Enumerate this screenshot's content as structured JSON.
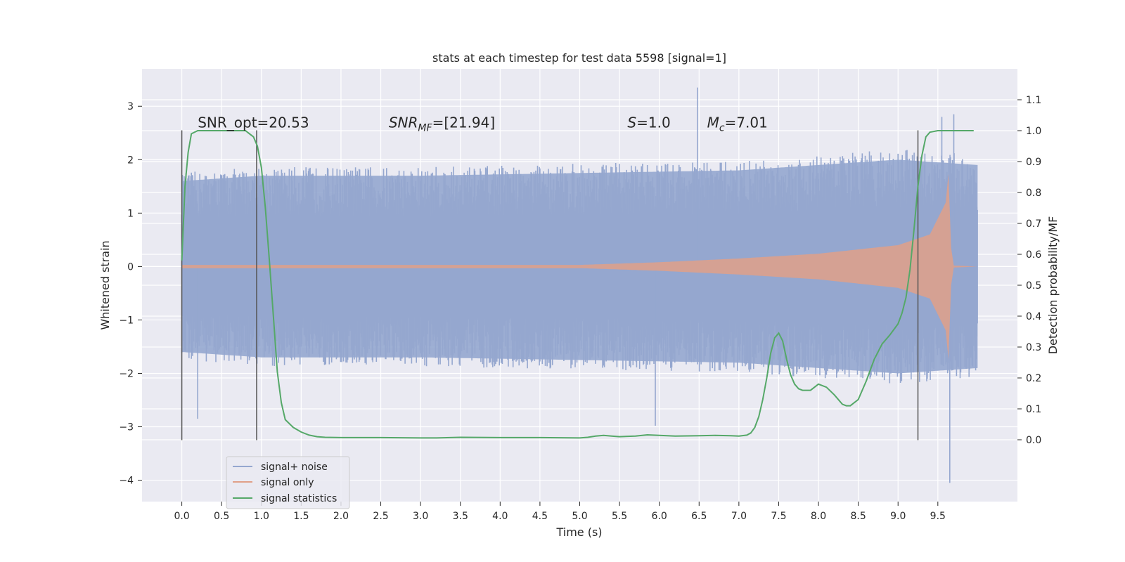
{
  "chart_data": {
    "type": "line",
    "title": "stats at each timestep for test data 5598 [signal=1]",
    "xlabel": "Time (s)",
    "ylabel_left": "Whitened strain",
    "ylabel_right": "Detection probability/MF",
    "xlim": [
      -0.5,
      10.5
    ],
    "ylim_left": [
      -4.4,
      3.7
    ],
    "ylim_right": [
      -0.2,
      1.2
    ],
    "x_ticks": [
      0.0,
      0.5,
      1.0,
      1.5,
      2.0,
      2.5,
      3.0,
      3.5,
      4.0,
      4.5,
      5.0,
      5.5,
      6.0,
      6.5,
      7.0,
      7.5,
      8.0,
      8.5,
      9.0,
      9.5
    ],
    "x_tick_labels": [
      "0.0",
      "0.5",
      "1.0",
      "1.5",
      "2.0",
      "2.5",
      "3.0",
      "3.5",
      "4.0",
      "4.5",
      "5.0",
      "5.5",
      "6.0",
      "6.5",
      "7.0",
      "7.5",
      "8.0",
      "8.5",
      "9.0",
      "9.5"
    ],
    "y_left_ticks": [
      3,
      2,
      1,
      0,
      -1,
      -2,
      -3,
      -4
    ],
    "y_left_tick_labels": [
      "3",
      "2",
      "1",
      "0",
      "−1",
      "−2",
      "−3",
      "−4"
    ],
    "y_right_ticks": [
      1.1,
      1.0,
      0.9,
      0.8,
      0.7,
      0.6,
      0.5,
      0.4,
      0.3,
      0.2,
      0.1,
      0.0
    ],
    "y_right_tick_labels": [
      "1.1",
      "1.0",
      "0.9",
      "0.8",
      "0.7",
      "0.6",
      "0.5",
      "0.4",
      "0.3",
      "0.2",
      "0.1",
      "0.0"
    ],
    "grid": true,
    "legend_position": "lower-left",
    "series": [
      {
        "name": "signal+ noise",
        "axis": "left",
        "color": "#95a7cf",
        "x_range": [
          0.0,
          10.0
        ],
        "envelope_upper": [
          [
            0.0,
            1.6
          ],
          [
            1.0,
            1.7
          ],
          [
            3.0,
            1.7
          ],
          [
            5.0,
            1.75
          ],
          [
            7.0,
            1.8
          ],
          [
            9.0,
            2.0
          ],
          [
            10.0,
            1.9
          ]
        ],
        "envelope_lower": [
          [
            0.0,
            -1.6
          ],
          [
            1.0,
            -1.7
          ],
          [
            3.0,
            -1.7
          ],
          [
            5.0,
            -1.75
          ],
          [
            7.0,
            -1.8
          ],
          [
            9.0,
            -2.0
          ],
          [
            10.0,
            -1.9
          ]
        ],
        "extremes": [
          [
            6.48,
            3.35
          ],
          [
            9.65,
            -4.05
          ],
          [
            0.2,
            -2.85
          ],
          [
            5.95,
            -2.98
          ],
          [
            9.7,
            2.85
          ],
          [
            9.55,
            2.8
          ]
        ]
      },
      {
        "name": "signal only",
        "axis": "left",
        "color": "#e0a088",
        "x_range": [
          0.0,
          10.0
        ],
        "envelope_upper": [
          [
            0.0,
            0.03
          ],
          [
            5.0,
            0.03
          ],
          [
            6.0,
            0.08
          ],
          [
            7.0,
            0.15
          ],
          [
            8.0,
            0.24
          ],
          [
            9.0,
            0.4
          ],
          [
            9.4,
            0.6
          ],
          [
            9.6,
            1.2
          ],
          [
            9.65,
            2.0
          ],
          [
            9.67,
            0.02
          ],
          [
            10.0,
            0.0
          ]
        ],
        "envelope_lower": [
          [
            0.0,
            -0.03
          ],
          [
            5.0,
            -0.03
          ],
          [
            6.0,
            -0.08
          ],
          [
            7.0,
            -0.15
          ],
          [
            8.0,
            -0.24
          ],
          [
            9.0,
            -0.4
          ],
          [
            9.4,
            -0.6
          ],
          [
            9.6,
            -1.2
          ],
          [
            9.65,
            -2.0
          ],
          [
            9.67,
            -0.02
          ],
          [
            10.0,
            0.0
          ]
        ]
      },
      {
        "name": "signal statistics",
        "axis": "right",
        "color": "#55a868",
        "x": [
          0.0,
          0.04,
          0.08,
          0.12,
          0.2,
          0.3,
          0.5,
          0.7,
          0.8,
          0.85,
          0.9,
          0.95,
          1.0,
          1.05,
          1.1,
          1.15,
          1.2,
          1.25,
          1.3,
          1.4,
          1.5,
          1.6,
          1.7,
          1.8,
          2.0,
          2.5,
          3.0,
          3.2,
          3.5,
          4.0,
          4.5,
          5.0,
          5.1,
          5.2,
          5.3,
          5.4,
          5.5,
          5.7,
          5.85,
          6.0,
          6.2,
          6.5,
          6.7,
          6.9,
          7.0,
          7.1,
          7.15,
          7.2,
          7.25,
          7.3,
          7.35,
          7.4,
          7.45,
          7.5,
          7.55,
          7.6,
          7.65,
          7.7,
          7.75,
          7.8,
          7.9,
          8.0,
          8.1,
          8.2,
          8.3,
          8.35,
          8.4,
          8.5,
          8.6,
          8.7,
          8.8,
          8.9,
          9.0,
          9.05,
          9.1,
          9.15,
          9.2,
          9.25,
          9.3,
          9.35,
          9.4,
          9.5,
          9.6,
          9.8,
          9.95
        ],
        "y": [
          0.58,
          0.82,
          0.93,
          0.99,
          1.0,
          1.0,
          1.0,
          1.0,
          1.0,
          0.99,
          0.98,
          0.95,
          0.88,
          0.75,
          0.58,
          0.4,
          0.22,
          0.12,
          0.065,
          0.04,
          0.025,
          0.015,
          0.01,
          0.008,
          0.007,
          0.007,
          0.006,
          0.006,
          0.008,
          0.007,
          0.007,
          0.006,
          0.008,
          0.012,
          0.014,
          0.012,
          0.01,
          0.012,
          0.016,
          0.014,
          0.012,
          0.013,
          0.014,
          0.013,
          0.012,
          0.015,
          0.022,
          0.04,
          0.075,
          0.13,
          0.2,
          0.28,
          0.33,
          0.345,
          0.32,
          0.26,
          0.21,
          0.18,
          0.165,
          0.16,
          0.16,
          0.18,
          0.17,
          0.145,
          0.115,
          0.11,
          0.11,
          0.13,
          0.19,
          0.26,
          0.31,
          0.34,
          0.375,
          0.41,
          0.46,
          0.55,
          0.68,
          0.82,
          0.92,
          0.98,
          0.995,
          1.0,
          1.0,
          1.0,
          1.0
        ]
      }
    ],
    "vertical_lines": [
      {
        "x": 0.0,
        "y_range": [
          -3.25,
          2.55
        ]
      },
      {
        "x": 0.94,
        "y_range": [
          -3.25,
          2.55
        ]
      },
      {
        "x": 9.25,
        "y_range": [
          -3.25,
          2.55
        ]
      }
    ],
    "annotations": [
      {
        "text": "SNR_opt=20.53",
        "x": 0.2,
        "y": 2.6,
        "italic": false
      },
      {
        "text_main": "SNR",
        "text_sub": "MF",
        "text_rest": "=[21.94]",
        "x": 2.6,
        "y": 2.6,
        "italic": true
      },
      {
        "text_main": "S",
        "text_rest": "=1.0",
        "x": 5.6,
        "y": 2.6,
        "italic": true
      },
      {
        "text_main": "M",
        "text_sub": "c",
        "text_rest": "=7.01",
        "x": 6.6,
        "y": 2.6,
        "italic": true
      }
    ]
  }
}
